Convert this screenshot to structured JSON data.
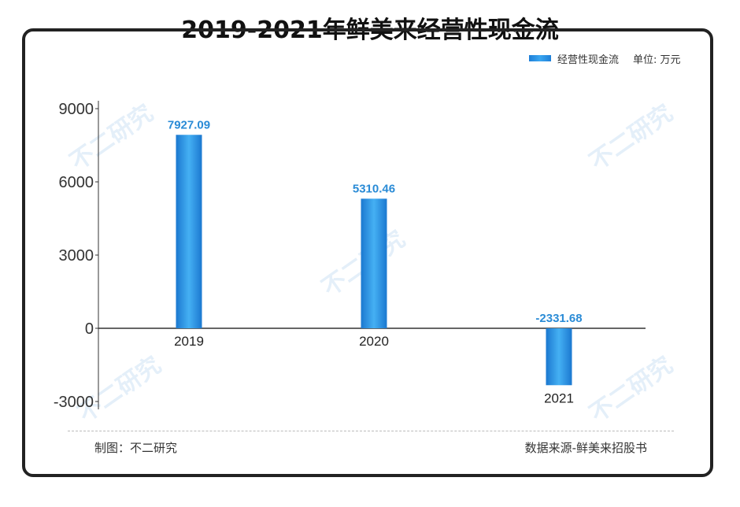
{
  "title": "2019-2021年鲜美来经营性现金流",
  "legend": {
    "series_label": "经营性现金流",
    "unit": "单位: 万元"
  },
  "footer": {
    "left": "制图：不二研究",
    "right": "数据来源-鲜美来招股书"
  },
  "watermark": "不二研究",
  "chart_data": {
    "type": "bar",
    "categories": [
      "2019",
      "2020",
      "2021"
    ],
    "series": [
      {
        "name": "经营性现金流",
        "values": [
          7927.09,
          5310.46,
          -2331.68
        ]
      }
    ],
    "data_labels": [
      "7927.09",
      "5310.46",
      "-2331.68"
    ],
    "yticks": [
      9000,
      6000,
      3000,
      0,
      -3000
    ],
    "ylim": [
      -3000,
      9000
    ],
    "grid": false,
    "legend_position": "top-right",
    "colors": {
      "bar": "#2b94e6",
      "label": "#2a8bd6"
    }
  }
}
